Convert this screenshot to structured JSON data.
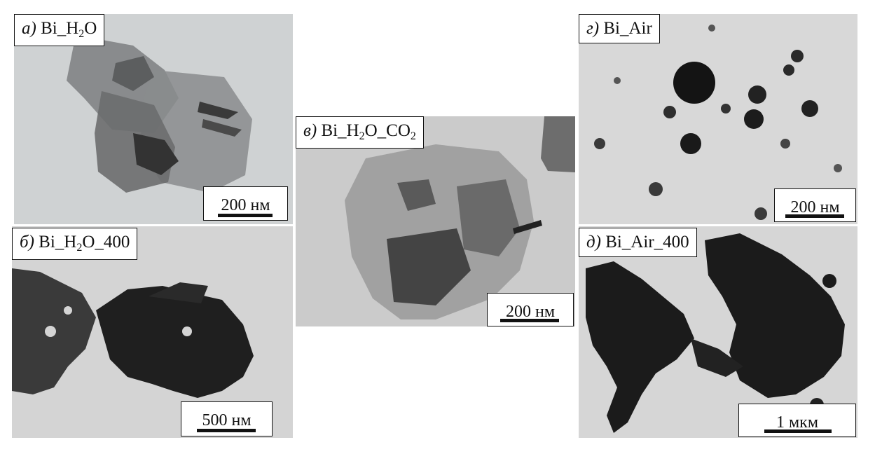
{
  "panels": {
    "a": {
      "letter": "а)",
      "name": "Bi_H",
      "sub": "2",
      "suffix": "O",
      "scale": "200 нм"
    },
    "b": {
      "letter": "б)",
      "name": "Bi_H",
      "sub": "2",
      "suffix": "O_400",
      "scale": "500 нм"
    },
    "v": {
      "letter": "в)",
      "name": "Bi_H",
      "sub1": "2",
      "mid": "O_CO",
      "sub2": "2",
      "scale": "200 нм"
    },
    "g": {
      "letter": "г)",
      "name": "Bi_Air",
      "scale": "200 нм"
    },
    "d": {
      "letter": "д)",
      "name": "Bi_Air_400",
      "scale": "1 мкм"
    }
  }
}
